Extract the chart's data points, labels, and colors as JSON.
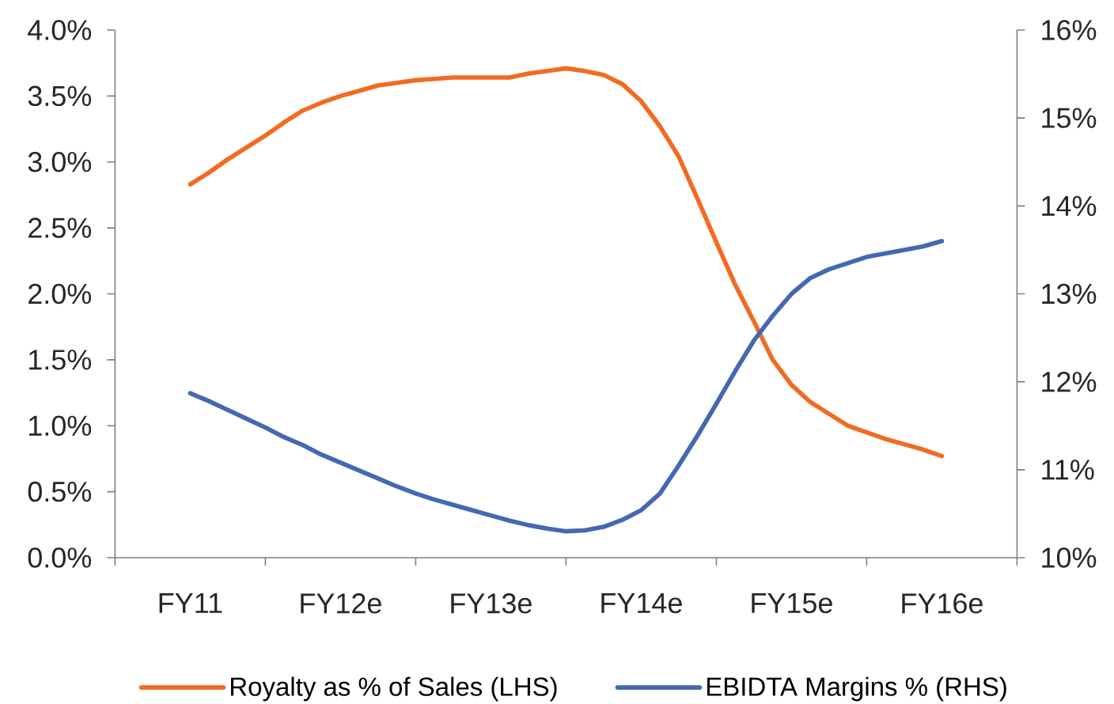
{
  "chart_data": {
    "type": "line",
    "categories": [
      "FY11",
      null,
      null,
      null,
      null,
      null,
      null,
      null,
      "FY12e",
      null,
      null,
      null,
      null,
      null,
      null,
      null,
      "FY13e",
      null,
      null,
      null,
      null,
      null,
      null,
      null,
      "FY14e",
      null,
      null,
      null,
      null,
      null,
      null,
      null,
      "FY15e",
      null,
      null,
      null,
      null,
      null,
      null,
      null,
      "FY16e"
    ],
    "ylim": [
      0,
      4
    ],
    "yticks": [
      {
        "value": 0,
        "label": "0.0%"
      },
      {
        "value": 0.5,
        "label": "0.5%"
      },
      {
        "value": 1,
        "label": "1.0%"
      },
      {
        "value": 1.5,
        "label": "1.5%"
      },
      {
        "value": 2,
        "label": "2.0%"
      },
      {
        "value": 2.5,
        "label": "2.5%"
      },
      {
        "value": 3,
        "label": "3.0%"
      },
      {
        "value": 3.5,
        "label": "3.5%"
      },
      {
        "value": 4,
        "label": "4.0%"
      }
    ],
    "y2lim": [
      10,
      16
    ],
    "y2ticks": [
      {
        "value": 10,
        "label": "10%"
      },
      {
        "value": 11,
        "label": "11%"
      },
      {
        "value": 12,
        "label": "12%"
      },
      {
        "value": 13,
        "label": "13%"
      },
      {
        "value": 14,
        "label": "14%"
      },
      {
        "value": 15,
        "label": "15%"
      },
      {
        "value": 16,
        "label": "16%"
      }
    ],
    "legend": "bottom",
    "marker": "none",
    "line_style": "solid",
    "series": [
      {
        "name": "Royalty as % of Sales (LHS)",
        "color": "#f26b21",
        "values": [
          2.83,
          2.92,
          3.02,
          3.11,
          3.2,
          3.3,
          3.39,
          3.45,
          3.5,
          3.54,
          3.58,
          3.6,
          3.62,
          3.63,
          3.64,
          3.64,
          3.64,
          3.64,
          3.67,
          3.69,
          3.71,
          3.69,
          3.66,
          3.59,
          3.46,
          3.27,
          3.04,
          2.72,
          2.39,
          2.07,
          1.79,
          1.5,
          1.31,
          1.18,
          1.09,
          1,
          0.95,
          0.9,
          0.86,
          0.82,
          0.77
        ]
      },
      {
        "name": "EBIDTA Margins % (RHS)",
        "color": "#4468b2",
        "axis": "y2",
        "values": [
          11.87,
          11.78,
          11.68,
          11.58,
          11.48,
          11.37,
          11.28,
          11.17,
          11.08,
          10.99,
          10.9,
          10.81,
          10.73,
          10.66,
          10.6,
          10.54,
          10.48,
          10.42,
          10.37,
          10.33,
          10.3,
          10.31,
          10.35,
          10.43,
          10.54,
          10.73,
          11.05,
          11.39,
          11.75,
          12.12,
          12.47,
          12.75,
          13,
          13.18,
          13.28,
          13.35,
          13.42,
          13.46,
          13.5,
          13.54,
          13.6
        ]
      }
    ]
  }
}
